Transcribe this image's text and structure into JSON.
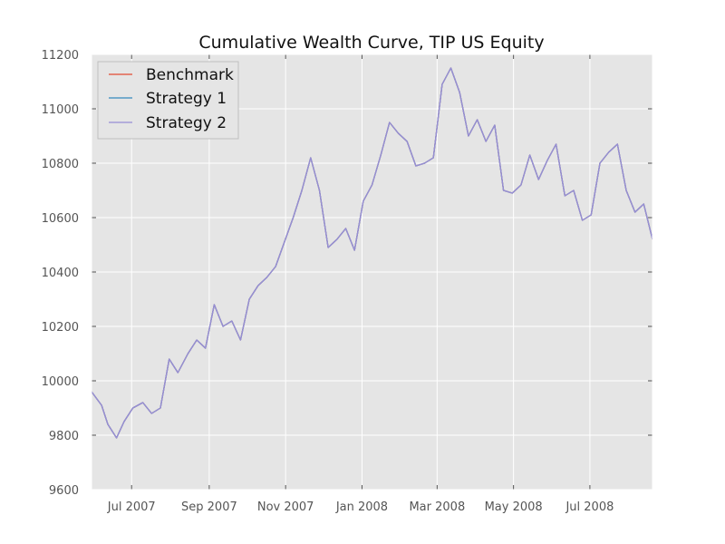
{
  "chart_data": {
    "type": "line",
    "title": "Cumulative Wealth Curve, TIP US Equity",
    "xlabel": "",
    "ylabel": "",
    "ylim": [
      9600,
      11200
    ],
    "xlim": [
      "2007-05-30",
      "2008-08-20"
    ],
    "y_ticks": [
      9600,
      9800,
      10000,
      10200,
      10400,
      10600,
      10800,
      11000,
      11200
    ],
    "x_ticks": [
      {
        "date": "2007-07-01",
        "label": "Jul 2007"
      },
      {
        "date": "2007-09-01",
        "label": "Sep 2007"
      },
      {
        "date": "2007-11-01",
        "label": "Nov 2007"
      },
      {
        "date": "2008-01-01",
        "label": "Jan 2008"
      },
      {
        "date": "2008-03-01",
        "label": "Mar 2008"
      },
      {
        "date": "2008-05-01",
        "label": "May 2008"
      },
      {
        "date": "2008-07-01",
        "label": "Jul 2008"
      }
    ],
    "grid": true,
    "legend_position": "top-left",
    "background": "#e5e5e5",
    "series": [
      {
        "name": "Benchmark",
        "color": "#e24a33",
        "x": [
          "2007-05-30",
          "2007-06-07",
          "2007-06-12",
          "2007-06-19",
          "2007-06-25",
          "2007-07-02",
          "2007-07-10",
          "2007-07-17",
          "2007-07-24",
          "2007-07-31",
          "2007-08-07",
          "2007-08-15",
          "2007-08-22",
          "2007-08-29",
          "2007-09-05",
          "2007-09-12",
          "2007-09-19",
          "2007-09-26",
          "2007-10-03",
          "2007-10-10",
          "2007-10-17",
          "2007-10-24",
          "2007-10-31",
          "2007-11-07",
          "2007-11-14",
          "2007-11-21",
          "2007-11-28",
          "2007-12-05",
          "2007-12-12",
          "2007-12-19",
          "2007-12-26",
          "2008-01-02",
          "2008-01-09",
          "2008-01-16",
          "2008-01-23",
          "2008-01-30",
          "2008-02-06",
          "2008-02-13",
          "2008-02-20",
          "2008-02-27",
          "2008-03-05",
          "2008-03-12",
          "2008-03-19",
          "2008-03-26",
          "2008-04-02",
          "2008-04-09",
          "2008-04-16",
          "2008-04-23",
          "2008-04-30",
          "2008-05-07",
          "2008-05-14",
          "2008-05-21",
          "2008-05-28",
          "2008-06-04",
          "2008-06-11",
          "2008-06-18",
          "2008-06-25",
          "2008-07-02",
          "2008-07-09",
          "2008-07-16",
          "2008-07-23",
          "2008-07-30",
          "2008-08-06",
          "2008-08-13",
          "2008-08-20"
        ],
        "y": [
          9960,
          9910,
          9840,
          9790,
          9850,
          9900,
          9920,
          9880,
          9900,
          10080,
          10030,
          10100,
          10150,
          10120,
          10280,
          10200,
          10220,
          10150,
          10300,
          10350,
          10380,
          10420,
          10510,
          10600,
          10700,
          10820,
          10700,
          10490,
          10520,
          10560,
          10480,
          10660,
          10720,
          10830,
          10950,
          10910,
          10880,
          10790,
          10800,
          10820,
          11090,
          11150,
          11060,
          10900,
          10960,
          10880,
          10940,
          10700,
          10690,
          10720,
          10830,
          10740,
          10810,
          10870,
          10680,
          10700,
          10590,
          10610,
          10800,
          10840,
          10870,
          10700,
          10620,
          10650,
          10520
        ]
      },
      {
        "name": "Strategy 1",
        "color": "#348abd",
        "x": [
          "2007-05-30",
          "2007-06-07",
          "2007-06-12",
          "2007-06-19",
          "2007-06-25",
          "2007-07-02",
          "2007-07-10",
          "2007-07-17",
          "2007-07-24",
          "2007-07-31",
          "2007-08-07",
          "2007-08-15",
          "2007-08-22",
          "2007-08-29",
          "2007-09-05",
          "2007-09-12",
          "2007-09-19",
          "2007-09-26",
          "2007-10-03",
          "2007-10-10",
          "2007-10-17",
          "2007-10-24",
          "2007-10-31",
          "2007-11-07",
          "2007-11-14",
          "2007-11-21",
          "2007-11-28",
          "2007-12-05",
          "2007-12-12",
          "2007-12-19",
          "2007-12-26",
          "2008-01-02",
          "2008-01-09",
          "2008-01-16",
          "2008-01-23",
          "2008-01-30",
          "2008-02-06",
          "2008-02-13",
          "2008-02-20",
          "2008-02-27",
          "2008-03-05",
          "2008-03-12",
          "2008-03-19",
          "2008-03-26",
          "2008-04-02",
          "2008-04-09",
          "2008-04-16",
          "2008-04-23",
          "2008-04-30",
          "2008-05-07",
          "2008-05-14",
          "2008-05-21",
          "2008-05-28",
          "2008-06-04",
          "2008-06-11",
          "2008-06-18",
          "2008-06-25",
          "2008-07-02",
          "2008-07-09",
          "2008-07-16",
          "2008-07-23",
          "2008-07-30",
          "2008-08-06",
          "2008-08-13",
          "2008-08-20"
        ],
        "y": [
          9960,
          9910,
          9840,
          9790,
          9850,
          9900,
          9920,
          9880,
          9900,
          10080,
          10030,
          10100,
          10150,
          10120,
          10280,
          10200,
          10220,
          10150,
          10300,
          10350,
          10380,
          10420,
          10510,
          10600,
          10700,
          10820,
          10700,
          10490,
          10520,
          10560,
          10480,
          10660,
          10720,
          10830,
          10950,
          10910,
          10880,
          10790,
          10800,
          10820,
          11090,
          11150,
          11060,
          10900,
          10960,
          10880,
          10940,
          10700,
          10690,
          10720,
          10830,
          10740,
          10810,
          10870,
          10680,
          10700,
          10590,
          10610,
          10800,
          10840,
          10870,
          10700,
          10620,
          10650,
          10520
        ]
      },
      {
        "name": "Strategy 2",
        "color": "#988ed5",
        "x": [
          "2007-05-30",
          "2007-06-07",
          "2007-06-12",
          "2007-06-19",
          "2007-06-25",
          "2007-07-02",
          "2007-07-10",
          "2007-07-17",
          "2007-07-24",
          "2007-07-31",
          "2007-08-07",
          "2007-08-15",
          "2007-08-22",
          "2007-08-29",
          "2007-09-05",
          "2007-09-12",
          "2007-09-19",
          "2007-09-26",
          "2007-10-03",
          "2007-10-10",
          "2007-10-17",
          "2007-10-24",
          "2007-10-31",
          "2007-11-07",
          "2007-11-14",
          "2007-11-21",
          "2007-11-28",
          "2007-12-05",
          "2007-12-12",
          "2007-12-19",
          "2007-12-26",
          "2008-01-02",
          "2008-01-09",
          "2008-01-16",
          "2008-01-23",
          "2008-01-30",
          "2008-02-06",
          "2008-02-13",
          "2008-02-20",
          "2008-02-27",
          "2008-03-05",
          "2008-03-12",
          "2008-03-19",
          "2008-03-26",
          "2008-04-02",
          "2008-04-09",
          "2008-04-16",
          "2008-04-23",
          "2008-04-30",
          "2008-05-07",
          "2008-05-14",
          "2008-05-21",
          "2008-05-28",
          "2008-06-04",
          "2008-06-11",
          "2008-06-18",
          "2008-06-25",
          "2008-07-02",
          "2008-07-09",
          "2008-07-16",
          "2008-07-23",
          "2008-07-30",
          "2008-08-06",
          "2008-08-13",
          "2008-08-20"
        ],
        "y": [
          9960,
          9910,
          9840,
          9790,
          9850,
          9900,
          9920,
          9880,
          9900,
          10080,
          10030,
          10100,
          10150,
          10120,
          10280,
          10200,
          10220,
          10150,
          10300,
          10350,
          10380,
          10420,
          10510,
          10600,
          10700,
          10820,
          10700,
          10490,
          10520,
          10560,
          10480,
          10660,
          10720,
          10830,
          10950,
          10910,
          10880,
          10790,
          10800,
          10820,
          11090,
          11150,
          11060,
          10900,
          10960,
          10880,
          10940,
          10700,
          10690,
          10720,
          10830,
          10740,
          10810,
          10870,
          10680,
          10700,
          10590,
          10610,
          10800,
          10840,
          10870,
          10700,
          10620,
          10650,
          10520
        ]
      }
    ]
  }
}
